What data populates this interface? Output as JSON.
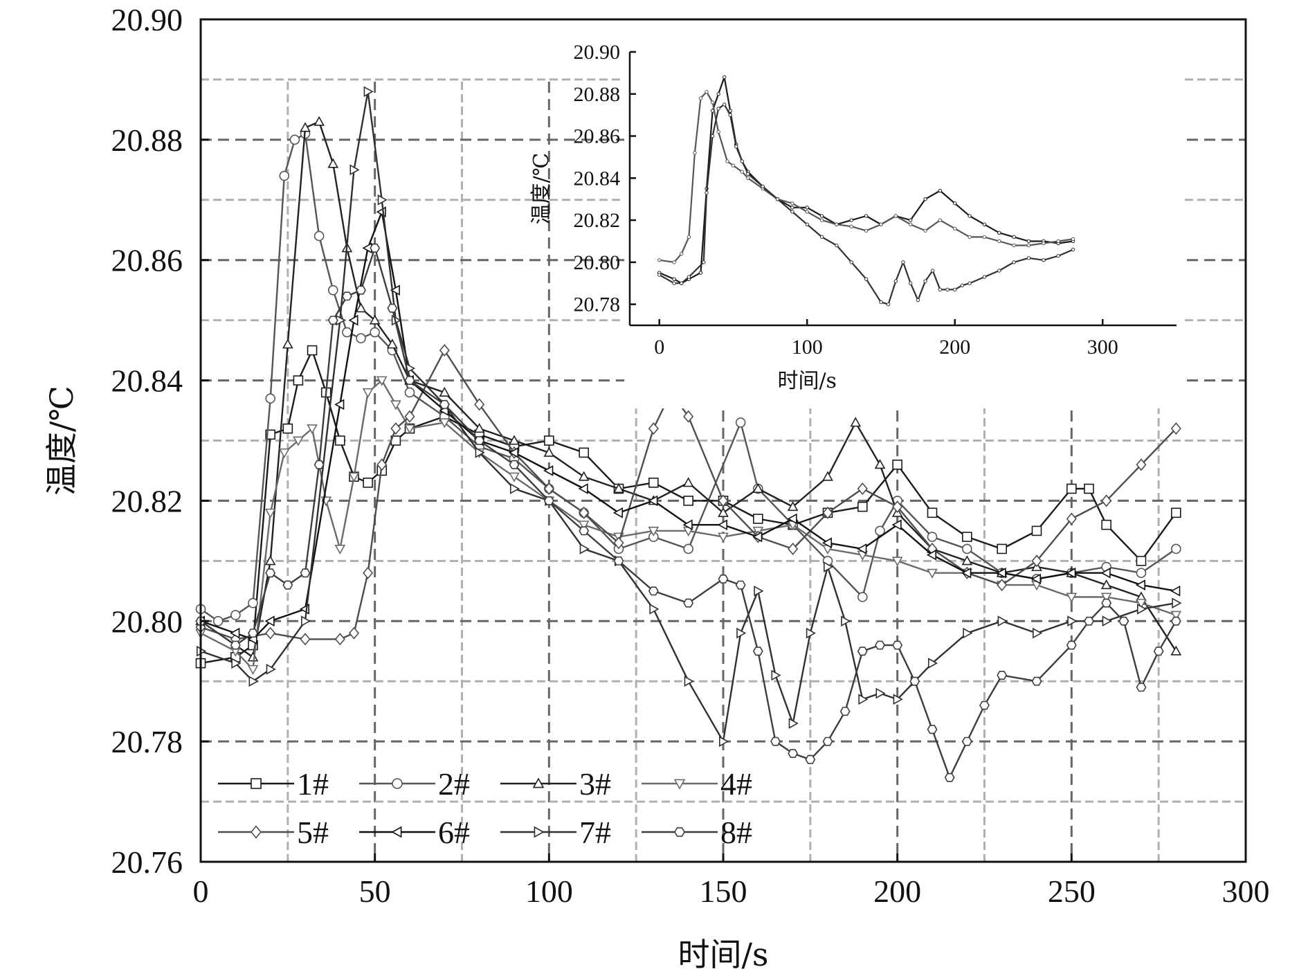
{
  "chart_data": [
    {
      "type": "line",
      "xlabel": "时间/s",
      "ylabel": "温度/℃",
      "xlim": [
        0,
        300
      ],
      "ylim": [
        20.76,
        20.9
      ],
      "x_ticks": [
        "0",
        "50",
        "100",
        "150",
        "200",
        "250",
        "300"
      ],
      "y_ticks": [
        "20.76",
        "20.78",
        "20.80",
        "20.82",
        "20.84",
        "20.86",
        "20.88",
        "20.90"
      ],
      "grid": true,
      "legend_placement": "bottom-left",
      "series": [
        {
          "name": "1#",
          "marker": "square",
          "color": "#1a1a1a",
          "x": [
            0,
            10,
            15,
            20,
            25,
            28,
            32,
            36,
            40,
            44,
            48,
            52,
            56,
            60,
            70,
            80,
            90,
            100,
            110,
            120,
            130,
            140,
            150,
            160,
            170,
            180,
            190,
            200,
            210,
            220,
            230,
            240,
            250,
            255,
            260,
            270,
            280
          ],
          "y": [
            20.793,
            20.794,
            20.796,
            20.831,
            20.832,
            20.84,
            20.845,
            20.838,
            20.83,
            20.824,
            20.823,
            20.825,
            20.83,
            20.832,
            20.834,
            20.831,
            20.829,
            20.83,
            20.828,
            20.822,
            20.823,
            20.82,
            20.82,
            20.817,
            20.816,
            20.818,
            20.819,
            20.826,
            20.818,
            20.814,
            20.812,
            20.815,
            20.822,
            20.822,
            20.816,
            20.81,
            20.818
          ]
        },
        {
          "name": "2#",
          "marker": "circle",
          "color": "#555555",
          "x": [
            0,
            5,
            10,
            15,
            20,
            24,
            27,
            30,
            34,
            38,
            42,
            46,
            50,
            55,
            60,
            70,
            80,
            90,
            100,
            110,
            120,
            130,
            140,
            155,
            160,
            170,
            180,
            190,
            195,
            200,
            210,
            220,
            230,
            240,
            250,
            260,
            270,
            280
          ],
          "y": [
            20.802,
            20.8,
            20.801,
            20.803,
            20.837,
            20.874,
            20.88,
            20.881,
            20.864,
            20.855,
            20.848,
            20.847,
            20.848,
            20.845,
            20.838,
            20.834,
            20.829,
            20.827,
            20.822,
            20.818,
            20.812,
            20.814,
            20.812,
            20.833,
            20.822,
            20.816,
            20.81,
            20.804,
            20.815,
            20.82,
            20.814,
            20.812,
            20.808,
            20.807,
            20.808,
            20.809,
            20.808,
            20.812
          ]
        },
        {
          "name": "3#",
          "marker": "triangle-up",
          "color": "#222222",
          "x": [
            0,
            10,
            15,
            20,
            25,
            30,
            34,
            38,
            42,
            46,
            50,
            55,
            60,
            70,
            80,
            90,
            100,
            110,
            120,
            130,
            140,
            150,
            160,
            170,
            180,
            188,
            195,
            200,
            210,
            220,
            230,
            240,
            250,
            260,
            270,
            280
          ],
          "y": [
            20.8,
            20.796,
            20.794,
            20.81,
            20.846,
            20.882,
            20.883,
            20.876,
            20.862,
            20.852,
            20.85,
            20.846,
            20.84,
            20.838,
            20.832,
            20.83,
            20.828,
            20.824,
            20.822,
            20.82,
            20.823,
            20.818,
            20.822,
            20.819,
            20.824,
            20.833,
            20.826,
            20.818,
            20.812,
            20.81,
            20.808,
            20.809,
            20.808,
            20.806,
            20.804,
            20.795
          ]
        },
        {
          "name": "4#",
          "marker": "triangle-down",
          "color": "#6a6a6a",
          "x": [
            0,
            10,
            15,
            20,
            24,
            28,
            32,
            36,
            40,
            44,
            48,
            52,
            56,
            60,
            70,
            80,
            90,
            100,
            110,
            120,
            130,
            140,
            150,
            160,
            170,
            180,
            190,
            200,
            210,
            220,
            230,
            240,
            250,
            260,
            270,
            280
          ],
          "y": [
            20.798,
            20.795,
            20.792,
            20.818,
            20.828,
            20.83,
            20.832,
            20.82,
            20.812,
            20.824,
            20.838,
            20.84,
            20.836,
            20.832,
            20.833,
            20.828,
            20.824,
            20.82,
            20.816,
            20.814,
            20.815,
            20.815,
            20.814,
            20.815,
            20.816,
            20.812,
            20.811,
            20.81,
            20.808,
            20.808,
            20.806,
            20.806,
            20.804,
            20.804,
            20.803,
            20.801
          ]
        },
        {
          "name": "5#",
          "marker": "diamond",
          "color": "#4d4d4d",
          "x": [
            0,
            10,
            20,
            30,
            40,
            44,
            48,
            52,
            56,
            60,
            70,
            80,
            90,
            100,
            110,
            120,
            130,
            135,
            140,
            150,
            160,
            170,
            180,
            190,
            200,
            210,
            220,
            230,
            240,
            250,
            260,
            270,
            280
          ],
          "y": [
            20.799,
            20.797,
            20.798,
            20.797,
            20.797,
            20.798,
            20.808,
            20.826,
            20.832,
            20.834,
            20.845,
            20.836,
            20.828,
            20.822,
            20.818,
            20.813,
            20.832,
            20.838,
            20.834,
            20.82,
            20.814,
            20.812,
            20.818,
            20.822,
            20.819,
            20.812,
            20.808,
            20.806,
            20.81,
            20.817,
            20.82,
            20.826,
            20.832
          ]
        },
        {
          "name": "6#",
          "marker": "triangle-left",
          "color": "#111111",
          "x": [
            0,
            10,
            15,
            20,
            30,
            40,
            44,
            48,
            52,
            56,
            60,
            70,
            80,
            90,
            100,
            110,
            120,
            130,
            140,
            150,
            160,
            170,
            180,
            190,
            200,
            210,
            220,
            230,
            240,
            250,
            260,
            270,
            280
          ],
          "y": [
            20.8,
            20.798,
            20.797,
            20.8,
            20.802,
            20.836,
            20.85,
            20.862,
            20.868,
            20.855,
            20.84,
            20.835,
            20.83,
            20.828,
            20.825,
            20.822,
            20.818,
            20.82,
            20.816,
            20.816,
            20.814,
            20.817,
            20.813,
            20.812,
            20.816,
            20.811,
            20.808,
            20.808,
            20.807,
            20.808,
            20.808,
            20.806,
            20.805
          ]
        },
        {
          "name": "7#",
          "marker": "triangle-right",
          "color": "#303030",
          "x": [
            0,
            10,
            15,
            20,
            30,
            40,
            44,
            48,
            52,
            56,
            60,
            70,
            80,
            90,
            100,
            110,
            120,
            130,
            140,
            150,
            155,
            160,
            165,
            170,
            175,
            180,
            185,
            190,
            195,
            200,
            205,
            210,
            220,
            230,
            240,
            250,
            260,
            270,
            280
          ],
          "y": [
            20.795,
            20.793,
            20.79,
            20.792,
            20.8,
            20.85,
            20.875,
            20.888,
            20.87,
            20.85,
            20.842,
            20.836,
            20.828,
            20.822,
            20.82,
            20.812,
            20.81,
            20.802,
            20.79,
            20.78,
            20.798,
            20.805,
            20.791,
            20.783,
            20.798,
            20.809,
            20.8,
            20.787,
            20.788,
            20.787,
            20.79,
            20.793,
            20.798,
            20.8,
            20.798,
            20.8,
            20.8,
            20.802,
            20.803
          ]
        },
        {
          "name": "8#",
          "marker": "hexagon",
          "color": "#3d3d3d",
          "x": [
            0,
            10,
            15,
            20,
            25,
            30,
            34,
            38,
            42,
            46,
            50,
            55,
            60,
            70,
            80,
            90,
            100,
            110,
            120,
            130,
            140,
            150,
            155,
            160,
            165,
            170,
            175,
            180,
            185,
            190,
            195,
            200,
            205,
            210,
            215,
            220,
            225,
            230,
            240,
            250,
            255,
            260,
            265,
            270,
            275,
            280
          ],
          "y": [
            20.8,
            20.796,
            20.798,
            20.808,
            20.806,
            20.808,
            20.826,
            20.85,
            20.854,
            20.855,
            20.862,
            20.852,
            20.84,
            20.836,
            20.83,
            20.826,
            20.82,
            20.815,
            20.81,
            20.805,
            20.803,
            20.807,
            20.806,
            20.795,
            20.78,
            20.778,
            20.777,
            20.78,
            20.785,
            20.795,
            20.796,
            20.796,
            20.79,
            20.782,
            20.774,
            20.78,
            20.786,
            20.791,
            20.79,
            20.796,
            20.8,
            20.803,
            20.8,
            20.789,
            20.795,
            20.8
          ]
        }
      ]
    },
    {
      "type": "line",
      "role": "inset",
      "xlabel": "时间/s",
      "ylabel": "温度/℃",
      "xlim": [
        -20,
        350
      ],
      "ylim": [
        20.77,
        20.9
      ],
      "x_ticks": [
        "0",
        "100",
        "200",
        "300"
      ],
      "y_ticks": [
        "20.78",
        "20.80",
        "20.82",
        "20.84",
        "20.86",
        "20.88",
        "20.90"
      ],
      "grid": false,
      "series": [
        {
          "color": "#1a1a1a",
          "x": [
            0,
            10,
            15,
            20,
            28,
            32,
            36,
            40,
            44,
            48,
            52,
            56,
            60,
            70,
            80,
            90,
            100,
            110,
            120,
            130,
            140,
            150,
            160,
            170,
            180,
            190,
            200,
            210,
            220,
            230,
            240,
            250,
            260,
            270,
            280
          ],
          "y": [
            20.795,
            20.792,
            20.79,
            20.792,
            20.795,
            20.835,
            20.872,
            20.88,
            20.888,
            20.872,
            20.856,
            20.848,
            20.843,
            20.836,
            20.83,
            20.826,
            20.826,
            20.822,
            20.818,
            20.82,
            20.822,
            20.818,
            20.822,
            20.82,
            20.83,
            20.834,
            20.828,
            20.822,
            20.818,
            20.814,
            20.812,
            20.81,
            20.81,
            20.809,
            20.81
          ]
        },
        {
          "color": "#555555",
          "x": [
            0,
            10,
            15,
            20,
            24,
            28,
            32,
            36,
            40,
            46,
            50,
            56,
            60,
            70,
            80,
            90,
            100,
            110,
            120,
            130,
            140,
            150,
            160,
            170,
            180,
            190,
            200,
            210,
            220,
            230,
            240,
            250,
            260,
            270,
            280
          ],
          "y": [
            20.801,
            20.8,
            20.804,
            20.812,
            20.852,
            20.878,
            20.881,
            20.876,
            20.862,
            20.848,
            20.846,
            20.843,
            20.84,
            20.835,
            20.83,
            20.828,
            20.824,
            20.82,
            20.818,
            20.817,
            20.815,
            20.818,
            20.822,
            20.818,
            20.815,
            20.82,
            20.816,
            20.812,
            20.812,
            20.81,
            20.808,
            20.808,
            20.809,
            20.81,
            20.811
          ]
        },
        {
          "color": "#303030",
          "x": [
            0,
            10,
            15,
            20,
            30,
            32,
            36,
            40,
            44,
            48,
            52,
            56,
            60,
            70,
            80,
            90,
            100,
            110,
            120,
            130,
            140,
            150,
            155,
            160,
            165,
            170,
            175,
            180,
            185,
            190,
            195,
            200,
            205,
            210,
            220,
            230,
            240,
            250,
            260,
            270,
            280
          ],
          "y": [
            20.794,
            20.79,
            20.79,
            20.793,
            20.8,
            20.833,
            20.86,
            20.873,
            20.875,
            20.87,
            20.855,
            20.848,
            20.842,
            20.836,
            20.83,
            20.824,
            20.818,
            20.812,
            20.808,
            20.8,
            20.792,
            20.781,
            20.78,
            20.791,
            20.8,
            20.79,
            20.782,
            20.791,
            20.796,
            20.787,
            20.787,
            20.787,
            20.789,
            20.79,
            20.793,
            20.796,
            20.8,
            20.802,
            20.801,
            20.803,
            20.806
          ]
        }
      ]
    }
  ]
}
